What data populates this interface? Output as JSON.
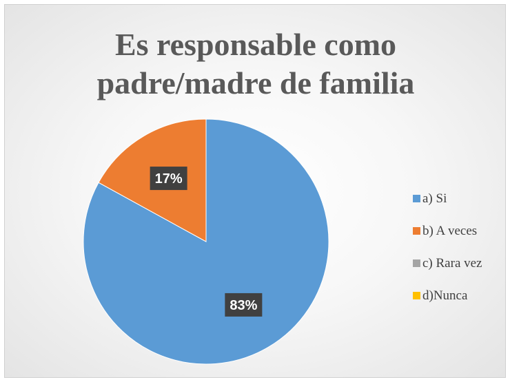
{
  "chart_data": {
    "type": "pie",
    "title_lines": [
      "Es responsable como",
      "padre/madre de familia"
    ],
    "categories": [
      "a) Si",
      "b) A veces",
      "c) Rara vez",
      "d)Nunca"
    ],
    "values": [
      83,
      17,
      0,
      0
    ],
    "data_labels": [
      "83%",
      "17%",
      "",
      ""
    ],
    "colors": [
      "#5b9bd5",
      "#ed7d31",
      "#a5a5a5",
      "#ffc000"
    ],
    "legend_position": "right",
    "start_angle_deg": 0,
    "direction": "clockwise"
  }
}
